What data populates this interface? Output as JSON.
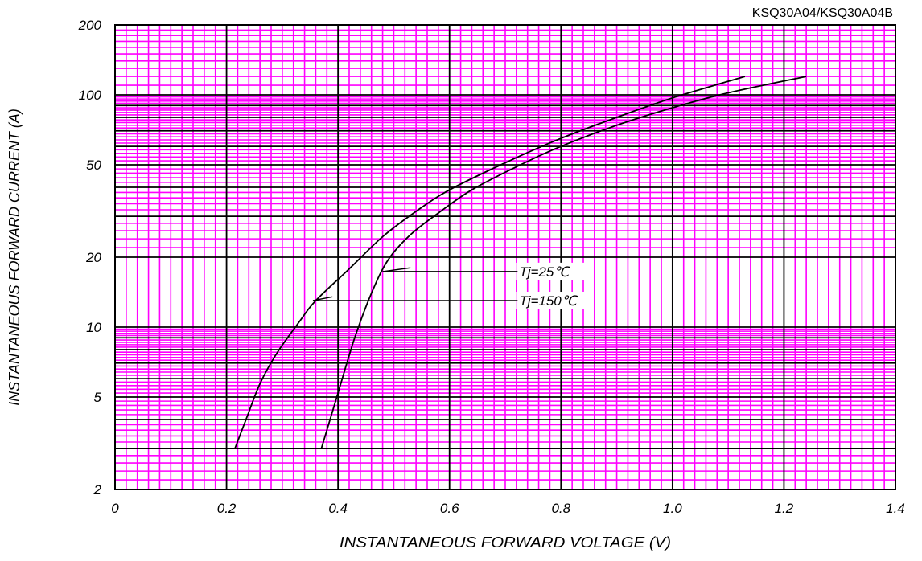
{
  "chart_data": {
    "type": "line",
    "title": "KSQ30A04/KSQ30A04B",
    "xlabel": "INSTANTANEOUS FORWARD VOLTAGE (V)",
    "ylabel": "INSTANTANEOUS FORWARD CURRENT (A)",
    "xlim": [
      0,
      1.4
    ],
    "ylim": [
      2,
      200
    ],
    "yscale": "log",
    "grid": true,
    "x_ticks": [
      0,
      0.2,
      0.4,
      0.6,
      0.8,
      1.0,
      1.2,
      1.4
    ],
    "x_tick_labels": [
      "0",
      "0.2",
      "0.4",
      "0.6",
      "0.8",
      "1.0",
      "1.2",
      "1.4"
    ],
    "y_ticks": [
      2,
      5,
      10,
      20,
      50,
      100,
      200
    ],
    "y_tick_labels": [
      "2",
      "5",
      "10",
      "20",
      "50",
      "100",
      "200"
    ],
    "colors": {
      "grid_minor": "#ff00ff",
      "grid_major": "#000000",
      "curve": "#000000"
    },
    "series": [
      {
        "name": "Tj=25℃",
        "points": [
          [
            0.37,
            3
          ],
          [
            0.38,
            3.6
          ],
          [
            0.4,
            5.2
          ],
          [
            0.43,
            9
          ],
          [
            0.46,
            14
          ],
          [
            0.49,
            19.5
          ],
          [
            0.53,
            25
          ],
          [
            0.58,
            31
          ],
          [
            0.64,
            39
          ],
          [
            0.72,
            49
          ],
          [
            0.8,
            60
          ],
          [
            0.9,
            74
          ],
          [
            1.0,
            88
          ],
          [
            1.1,
            102
          ],
          [
            1.24,
            120
          ]
        ]
      },
      {
        "name": "Tj=150℃",
        "points": [
          [
            0.215,
            3
          ],
          [
            0.235,
            4
          ],
          [
            0.26,
            5.7
          ],
          [
            0.29,
            7.7
          ],
          [
            0.33,
            10.5
          ],
          [
            0.36,
            13
          ],
          [
            0.42,
            17.8
          ],
          [
            0.48,
            24.5
          ],
          [
            0.54,
            31.5
          ],
          [
            0.6,
            39
          ],
          [
            0.7,
            51
          ],
          [
            0.8,
            65
          ],
          [
            0.9,
            80
          ],
          [
            1.0,
            97
          ],
          [
            1.13,
            120
          ]
        ]
      }
    ],
    "annotations": [
      {
        "text": "Tj=25℃",
        "x": 0.725,
        "y": 16.8,
        "target_series": "Tj=25℃"
      },
      {
        "text": "Tj=150℃",
        "x": 0.725,
        "y": 12.6,
        "target_series": "Tj=150℃"
      }
    ]
  }
}
